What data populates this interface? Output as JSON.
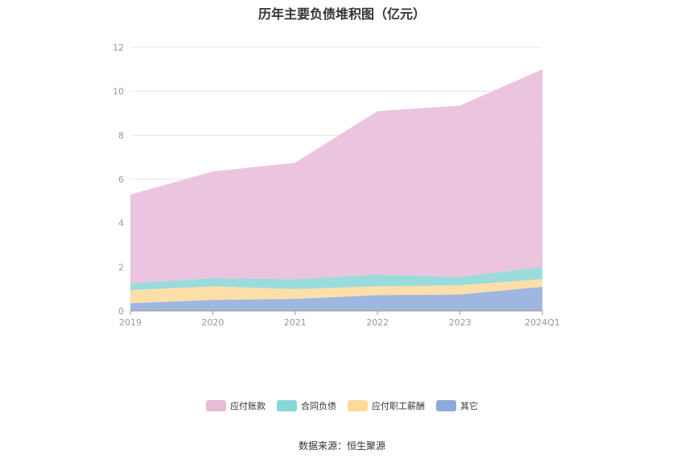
{
  "chart_data": {
    "type": "area",
    "stacked": true,
    "title": "历年主要负债堆积图（亿元）",
    "categories": [
      "2019",
      "2020",
      "2021",
      "2022",
      "2023",
      "2024Q1"
    ],
    "ylim": [
      0,
      12
    ],
    "yticks": [
      "0",
      "2",
      "4",
      "6",
      "8",
      "10",
      "12"
    ],
    "grid": true,
    "legend_position": "bottom",
    "series": [
      {
        "name": "其它",
        "color": "#8eaadb",
        "values": [
          0.35,
          0.5,
          0.55,
          0.72,
          0.75,
          1.1
        ]
      },
      {
        "name": "应付职工薪酬",
        "color": "#ffd99a",
        "values": [
          0.6,
          0.62,
          0.45,
          0.4,
          0.42,
          0.35
        ]
      },
      {
        "name": "合同负债",
        "color": "#88d6d6",
        "values": [
          0.3,
          0.38,
          0.45,
          0.53,
          0.38,
          0.55
        ]
      },
      {
        "name": "应付账款",
        "color": "#e8bbdb",
        "values": [
          4.05,
          4.85,
          5.3,
          7.45,
          7.8,
          9.0
        ]
      }
    ]
  },
  "legend_order": [
    "应付账款",
    "合同负债",
    "应付职工薪酬",
    "其它"
  ],
  "source": "数据来源：恒生聚源"
}
